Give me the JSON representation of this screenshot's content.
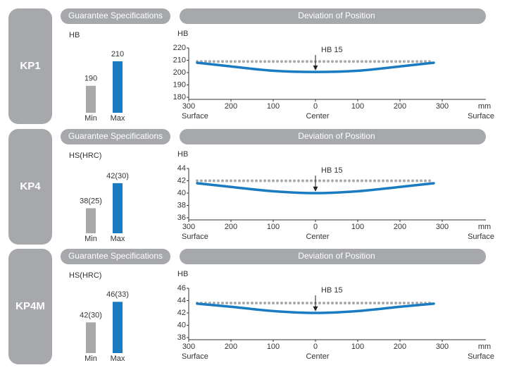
{
  "rows": [
    {
      "label": "KP1"
    },
    {
      "label": "KP4"
    },
    {
      "label": "KP4M"
    }
  ],
  "chart_data": [
    {
      "type": "bar",
      "title": "Guarantee Specifications",
      "unit_label": "HB",
      "categories": [
        "Min",
        "Max"
      ],
      "values": [
        190,
        210
      ],
      "colors": [
        "#a9a9ab",
        "#1a7bc2"
      ],
      "ylim": [
        168,
        214
      ]
    },
    {
      "type": "line",
      "title": "Deviation of Position",
      "y_label": "HB",
      "x_unit": "mm",
      "x_captions": [
        {
          "value": -300,
          "label": "Surface"
        },
        {
          "value": 0,
          "label": "Center"
        },
        {
          "value": 300,
          "label": "Surface"
        }
      ],
      "annotation": {
        "text": "HB 15",
        "x": 0
      },
      "xlim": [
        -300,
        300
      ],
      "xticks": [
        {
          "value": -300,
          "label": "300"
        },
        {
          "value": -200,
          "label": "200"
        },
        {
          "value": -100,
          "label": "100"
        },
        0,
        100,
        200,
        300
      ],
      "ylim": [
        180,
        220
      ],
      "yticks": [
        180,
        190,
        200,
        210,
        220
      ],
      "x": [
        -280,
        -200,
        -100,
        0,
        100,
        200,
        280
      ],
      "series": [
        {
          "color": "#aaaaaa",
          "style": "dotted",
          "values": [
            209,
            209,
            209,
            209,
            209,
            209,
            209
          ]
        },
        {
          "color": "#1a7bc2",
          "style": "solid",
          "values": [
            208,
            205,
            201.5,
            200.5,
            201.5,
            205,
            208
          ]
        }
      ]
    },
    {
      "type": "bar",
      "title": "Guarantee Specifications",
      "unit_label": "HS(HRC)",
      "categories": [
        "Min",
        "Max"
      ],
      "values": [
        38,
        42
      ],
      "value_labels": [
        "38(25)",
        "42(30)"
      ],
      "colors": [
        "#a9a9ab",
        "#1a7bc2"
      ],
      "ylim": [
        34,
        43
      ]
    },
    {
      "type": "line",
      "title": "Deviation of Position",
      "y_label": "HB",
      "x_unit": "mm",
      "x_captions": [
        {
          "value": -300,
          "label": "Surface"
        },
        {
          "value": 0,
          "label": "Center"
        },
        {
          "value": 300,
          "label": "Surface"
        }
      ],
      "annotation": {
        "text": "HB 15",
        "x": 0
      },
      "xlim": [
        -300,
        300
      ],
      "xticks": [
        {
          "value": -300,
          "label": "300"
        },
        {
          "value": -200,
          "label": "200"
        },
        {
          "value": -100,
          "label": "100"
        },
        0,
        100,
        200,
        300
      ],
      "ylim": [
        36,
        44
      ],
      "yticks": [
        36,
        38,
        40,
        42,
        44
      ],
      "x": [
        -280,
        -200,
        -100,
        0,
        100,
        200,
        280
      ],
      "series": [
        {
          "color": "#aaaaaa",
          "style": "dotted",
          "values": [
            42,
            42,
            42,
            42,
            42,
            42,
            42
          ]
        },
        {
          "color": "#1a7bc2",
          "style": "solid",
          "values": [
            41.6,
            41,
            40.3,
            40,
            40.3,
            41,
            41.6
          ]
        }
      ]
    },
    {
      "type": "bar",
      "title": "Guarantee Specifications",
      "unit_label": "HS(HRC)",
      "categories": [
        "Min",
        "Max"
      ],
      "values": [
        42,
        46
      ],
      "value_labels": [
        "42(30)",
        "46(33)"
      ],
      "colors": [
        "#a9a9ab",
        "#1a7bc2"
      ],
      "ylim": [
        36,
        47
      ]
    },
    {
      "type": "line",
      "title": "Deviation of Position",
      "y_label": "HB",
      "x_unit": "mm",
      "x_captions": [
        {
          "value": -300,
          "label": "Surface"
        },
        {
          "value": 0,
          "label": "Center"
        },
        {
          "value": 300,
          "label": "Surface"
        }
      ],
      "annotation": {
        "text": "HB 15",
        "x": 0
      },
      "xlim": [
        -300,
        300
      ],
      "xticks": [
        {
          "value": -300,
          "label": "300"
        },
        {
          "value": -200,
          "label": "200"
        },
        {
          "value": -100,
          "label": "100"
        },
        0,
        100,
        200,
        300
      ],
      "ylim": [
        38,
        46
      ],
      "yticks": [
        38,
        40,
        42,
        44,
        46
      ],
      "x": [
        -280,
        -200,
        -100,
        0,
        100,
        200,
        280
      ],
      "series": [
        {
          "color": "#aaaaaa",
          "style": "dotted",
          "values": [
            43.6,
            43.6,
            43.6,
            43.6,
            43.6,
            43.6,
            43.6
          ]
        },
        {
          "color": "#1a7bc2",
          "style": "solid",
          "values": [
            43.5,
            43,
            42.3,
            42,
            42.3,
            43,
            43.5
          ]
        }
      ]
    }
  ]
}
